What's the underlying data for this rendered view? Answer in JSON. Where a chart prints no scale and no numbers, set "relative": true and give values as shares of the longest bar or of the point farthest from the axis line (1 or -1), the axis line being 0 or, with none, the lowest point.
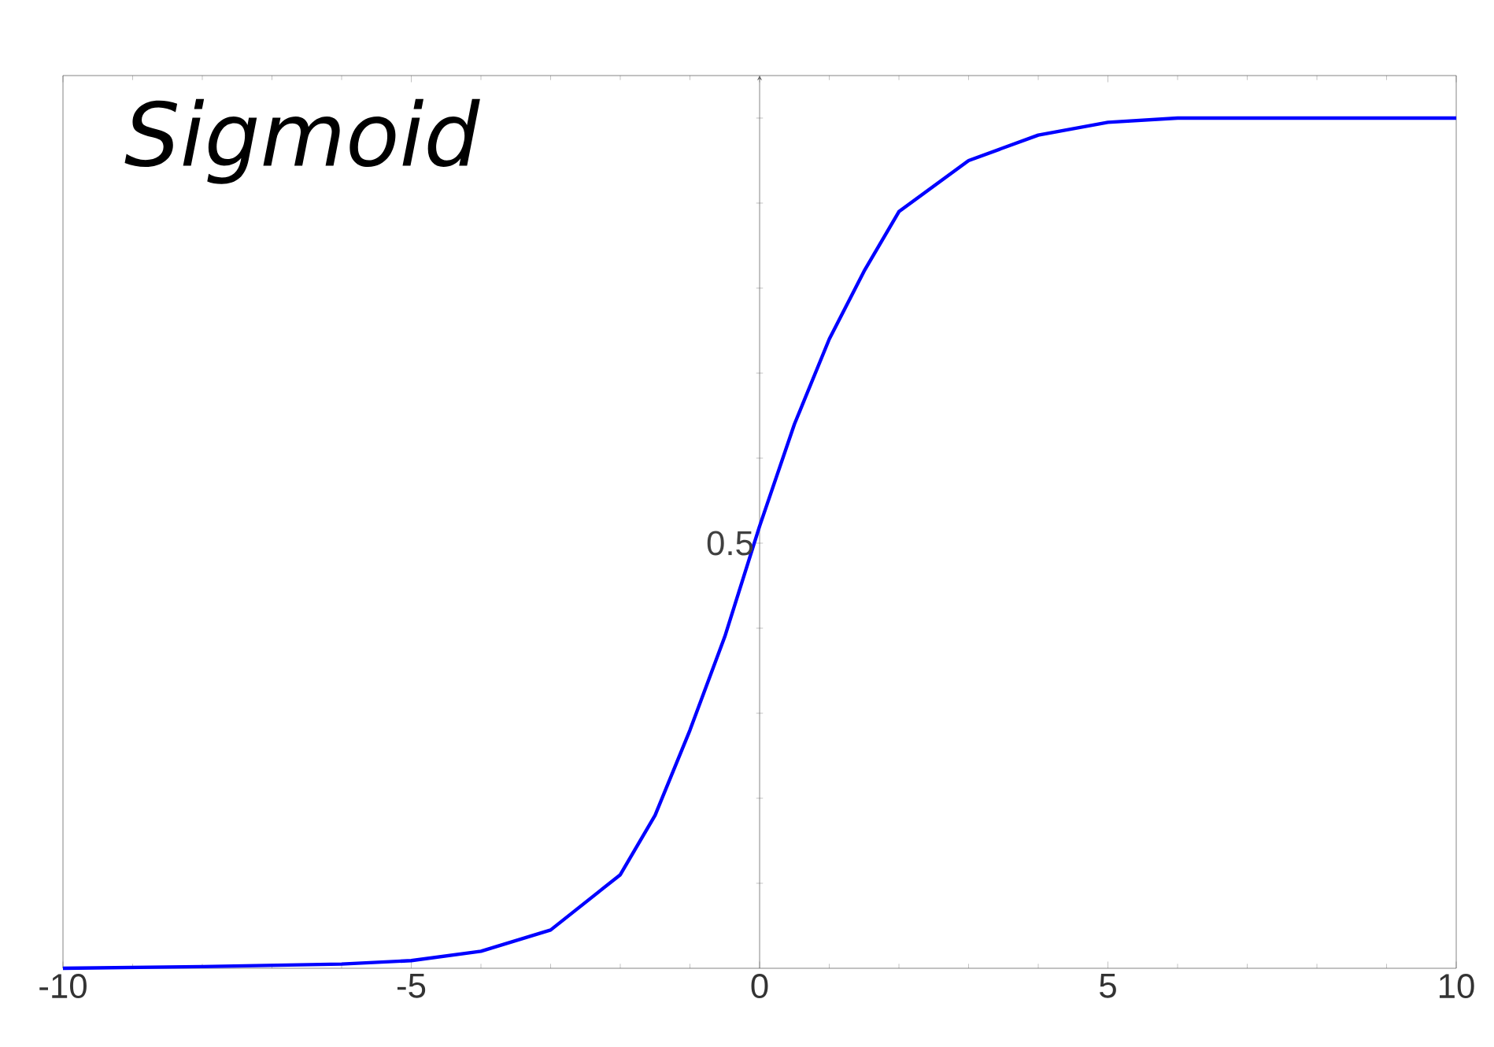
{
  "chart_data": {
    "type": "line",
    "title": "Sigmoid",
    "relative": true,
    "x": [
      -10,
      -8,
      -6,
      -5,
      -4,
      -3,
      -2,
      -1.5,
      -1,
      -0.5,
      0,
      0.5,
      1,
      1.5,
      2,
      3,
      4,
      5,
      6,
      8,
      10
    ],
    "values": [
      0,
      0.002,
      0.005,
      0.009,
      0.02,
      0.045,
      0.11,
      0.18,
      0.28,
      0.39,
      0.52,
      0.64,
      0.74,
      0.82,
      0.89,
      0.95,
      0.98,
      0.995,
      1,
      1,
      1
    ],
    "color": "#0000ff",
    "xlim": [
      -10,
      10
    ],
    "xticks": [
      -10,
      -5,
      0,
      5,
      10
    ],
    "annotations": [
      {
        "text": "0.5",
        "x": 0,
        "y": 0.5
      }
    ]
  }
}
